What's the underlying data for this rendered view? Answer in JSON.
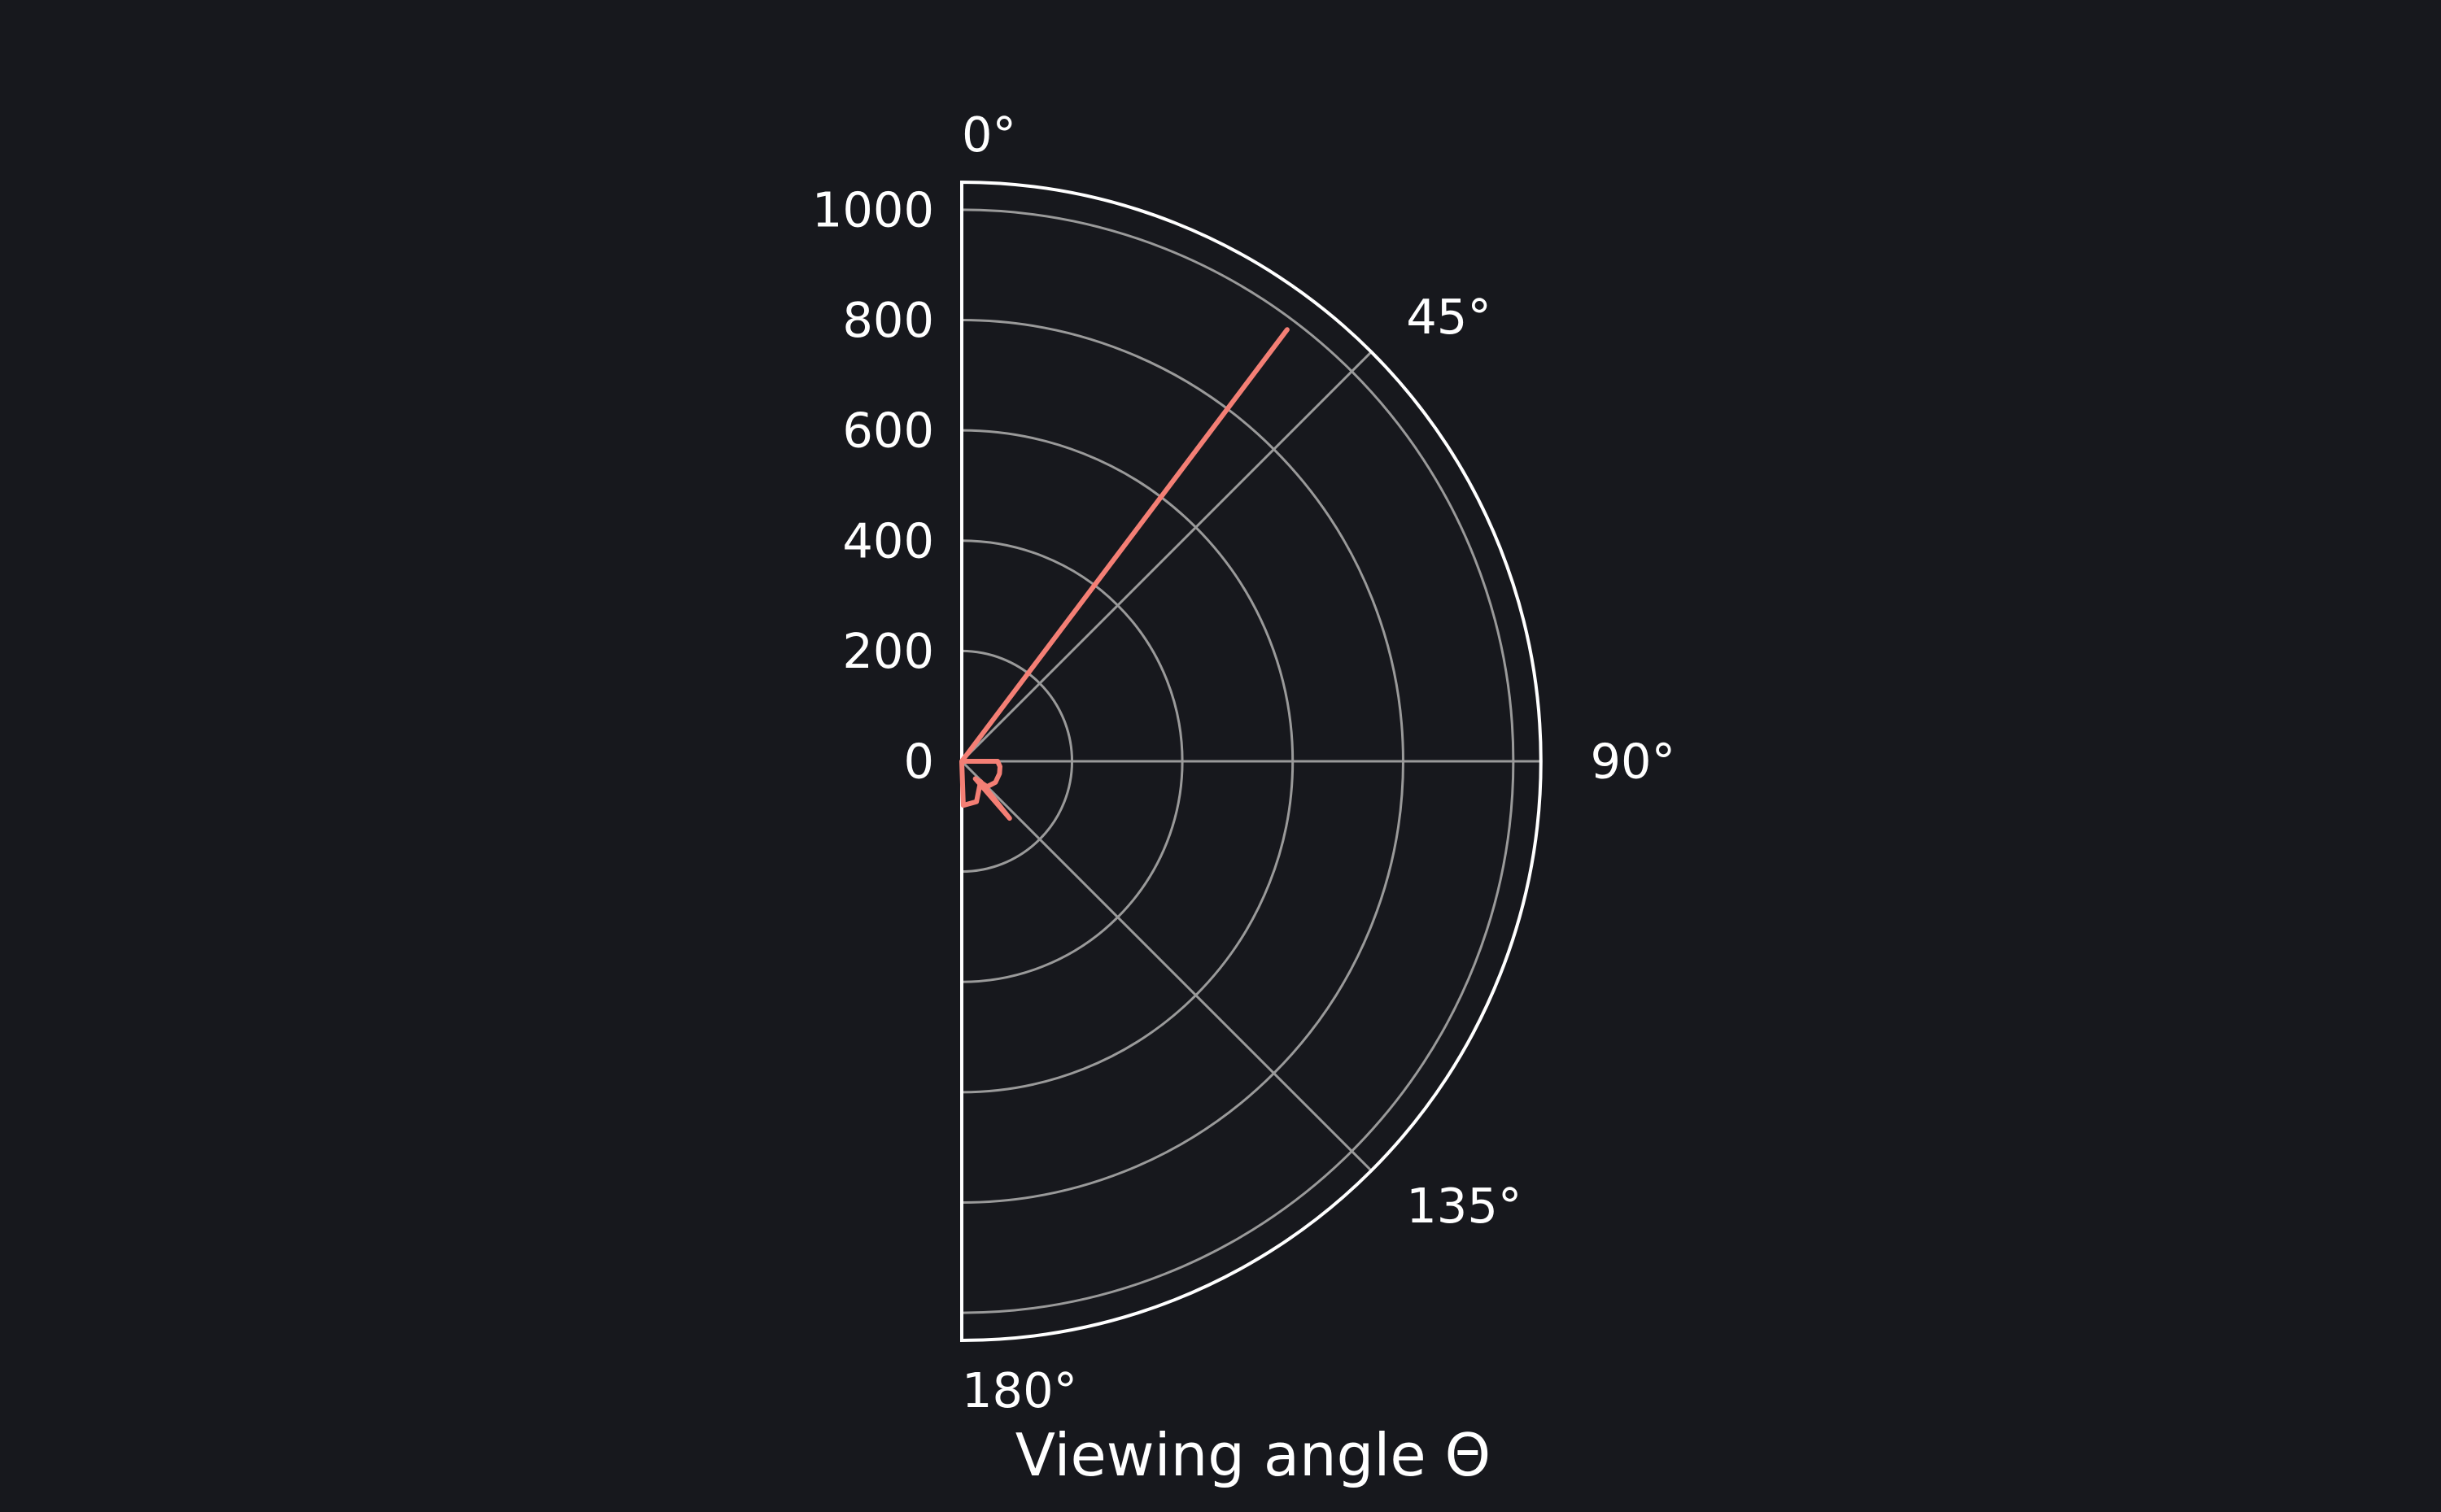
{
  "chart_data": {
    "type": "line",
    "projection": "polar",
    "theta_direction": "clockwise",
    "theta_zero_location": "top",
    "theta_range_deg": [
      0,
      180
    ],
    "rlim": [
      0,
      1050
    ],
    "r_ticks": [
      0,
      200,
      400,
      600,
      800,
      1000
    ],
    "r_tick_labels": [
      "0",
      "200",
      "400",
      "600",
      "800",
      "1000"
    ],
    "theta_ticks_deg": [
      0,
      45,
      90,
      135,
      180
    ],
    "theta_tick_labels": [
      "0°",
      "45°",
      "90°",
      "135°",
      "180°"
    ],
    "xlabel": "Viewing angle Θ",
    "grid": true,
    "colors": {
      "background": "#17181d",
      "line": "#f47f75",
      "grid": "#9a9a9a",
      "spine": "#ffffff",
      "text": "#ffffff"
    },
    "series": [
      {
        "theta_deg": [
          0,
          37,
          0,
          90,
          98,
          108,
          122,
          135,
          142,
          140,
          137,
          160,
          178,
          180
        ],
        "r": [
          0,
          980,
          0,
          65,
          70,
          72,
          72,
          65,
          40,
          135,
          50,
          78,
          80,
          0
        ]
      }
    ]
  }
}
